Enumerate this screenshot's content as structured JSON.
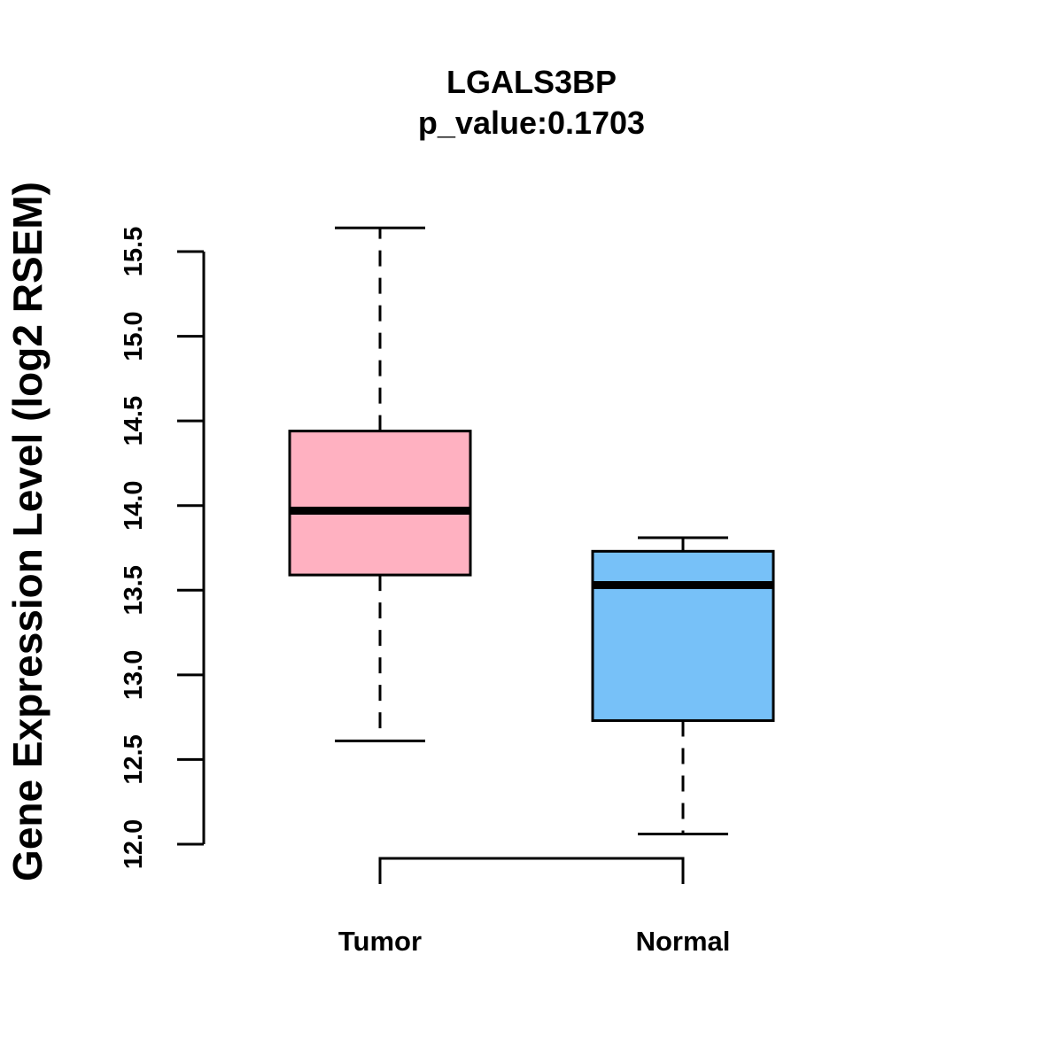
{
  "chart_data": {
    "type": "boxplot",
    "title": "LGALS3BP",
    "subtitle": "p_value:0.1703",
    "xlabel": "",
    "ylabel": "Gene Expression Level (log2 RSEM)",
    "ylim": [
      12.0,
      15.5
    ],
    "yticks": [
      "12.0",
      "12.5",
      "13.0",
      "13.5",
      "14.0",
      "14.5",
      "15.0",
      "15.5"
    ],
    "categories": [
      "Tumor",
      "Normal"
    ],
    "boxes": [
      {
        "name": "Tumor",
        "whisker_low": 12.61,
        "q1": 13.59,
        "median": 13.97,
        "q3": 14.44,
        "whisker_high": 15.64,
        "color": "#FFB1C1"
      },
      {
        "name": "Normal",
        "whisker_low": 12.06,
        "q1": 12.73,
        "median": 13.53,
        "q3": 13.73,
        "whisker_high": 13.81,
        "color": "#77C1F8"
      }
    ],
    "grid": false,
    "legend": "none",
    "comparison_bracket": [
      "Tumor",
      "Normal"
    ]
  }
}
